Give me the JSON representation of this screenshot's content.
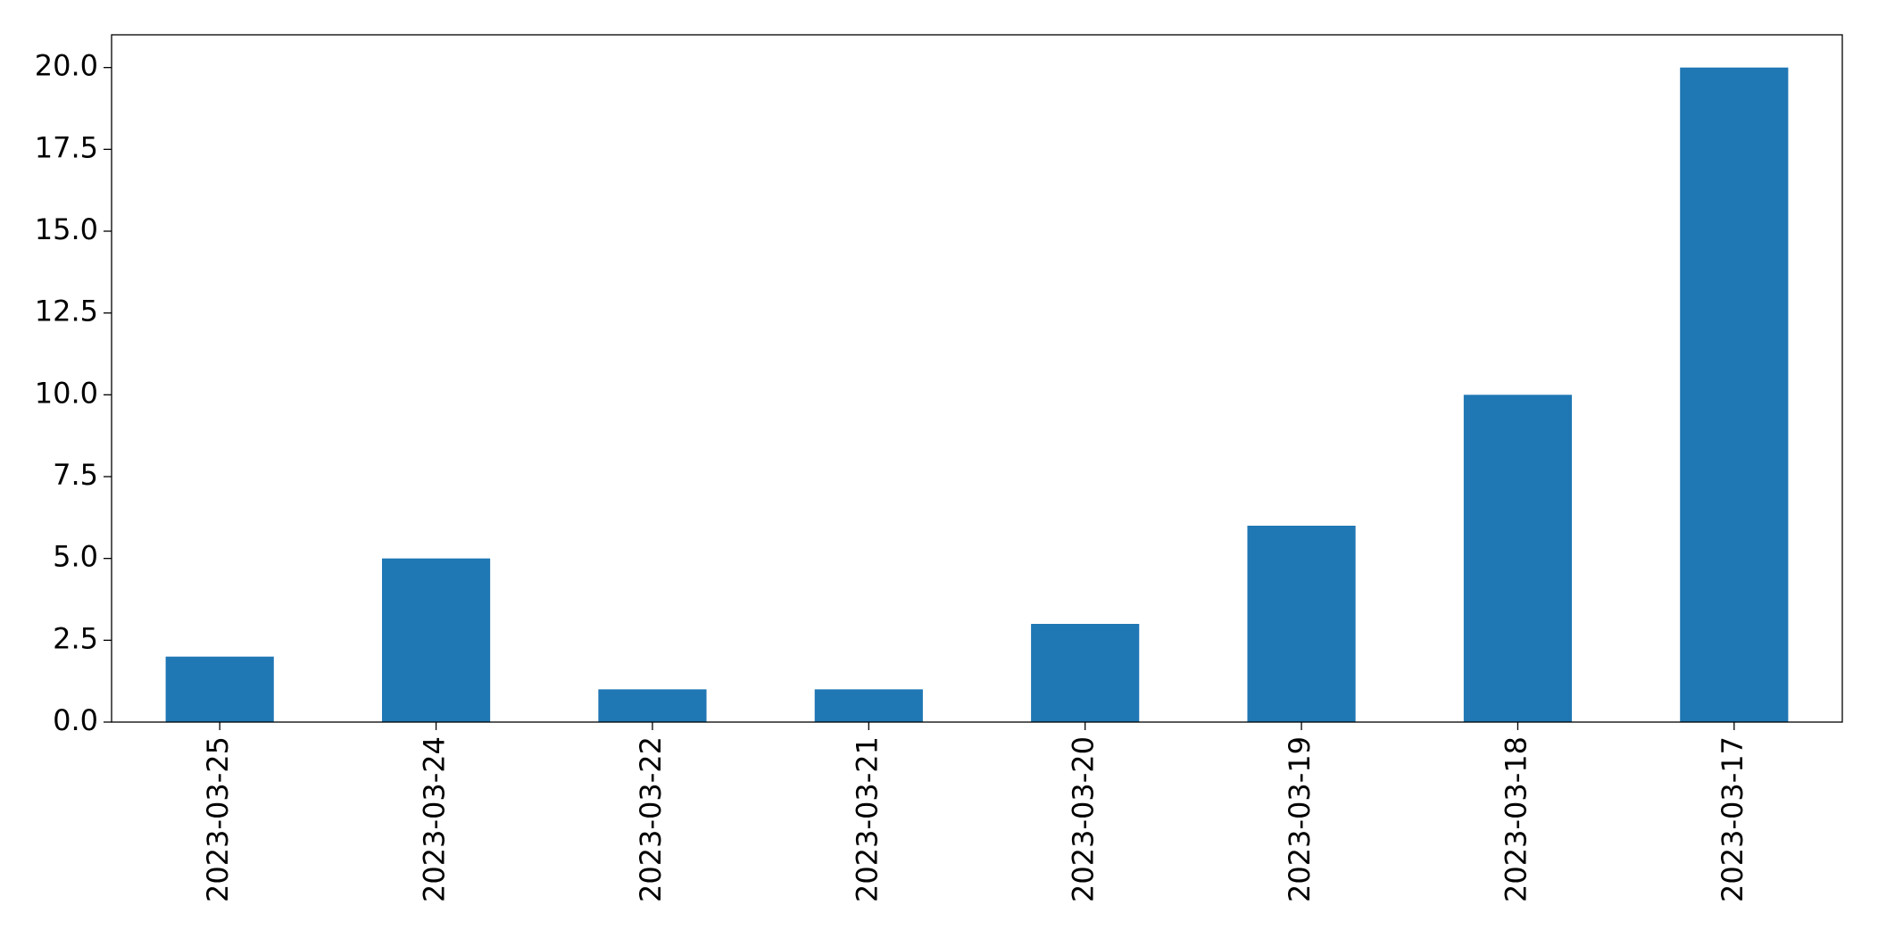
{
  "chart_data": {
    "type": "bar",
    "categories": [
      "2023-03-25",
      "2023-03-24",
      "2023-03-22",
      "2023-03-21",
      "2023-03-20",
      "2023-03-19",
      "2023-03-18",
      "2023-03-17"
    ],
    "values": [
      2,
      5,
      1,
      1,
      3,
      6,
      10,
      20
    ],
    "color": "#1f77b4",
    "ylim": [
      0,
      21
    ],
    "yticks": [
      {
        "value": 0,
        "label": "0.0"
      },
      {
        "value": 2.5,
        "label": "2.5"
      },
      {
        "value": 5,
        "label": "5.0"
      },
      {
        "value": 7.5,
        "label": "7.5"
      },
      {
        "value": 10,
        "label": "10.0"
      },
      {
        "value": 12.5,
        "label": "12.5"
      },
      {
        "value": 15,
        "label": "15.0"
      },
      {
        "value": 17.5,
        "label": "17.5"
      },
      {
        "value": 20,
        "label": "20.0"
      }
    ],
    "grid": false
  }
}
